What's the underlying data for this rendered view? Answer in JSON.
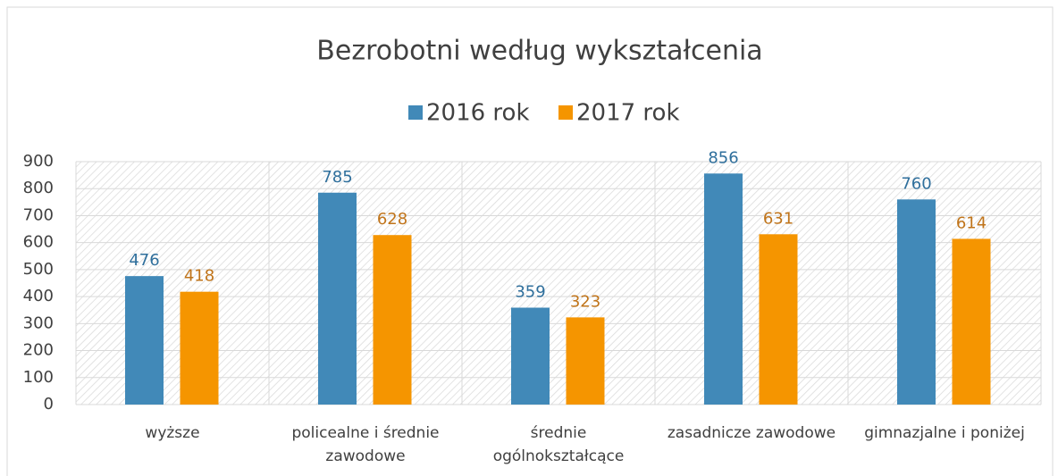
{
  "chart_data": {
    "type": "bar",
    "title": "Bezrobotni według wykształcenia",
    "categories": [
      "wyższe",
      "policealne i średnie zawodowe",
      "średnie ogólnokształcące",
      "zasadnicze zawodowe",
      "gimnazjalne i poniżej"
    ],
    "series": [
      {
        "name": "2016 rok",
        "color": "#4189b8",
        "values": [
          476,
          785,
          359,
          856,
          760
        ]
      },
      {
        "name": "2017 rok",
        "color": "#f59500",
        "values": [
          418,
          628,
          323,
          631,
          614
        ]
      }
    ],
    "ylim": [
      0,
      900
    ],
    "yticks": [
      0,
      100,
      200,
      300,
      400,
      500,
      600,
      700,
      800,
      900
    ],
    "grid": true,
    "legend": "top"
  }
}
